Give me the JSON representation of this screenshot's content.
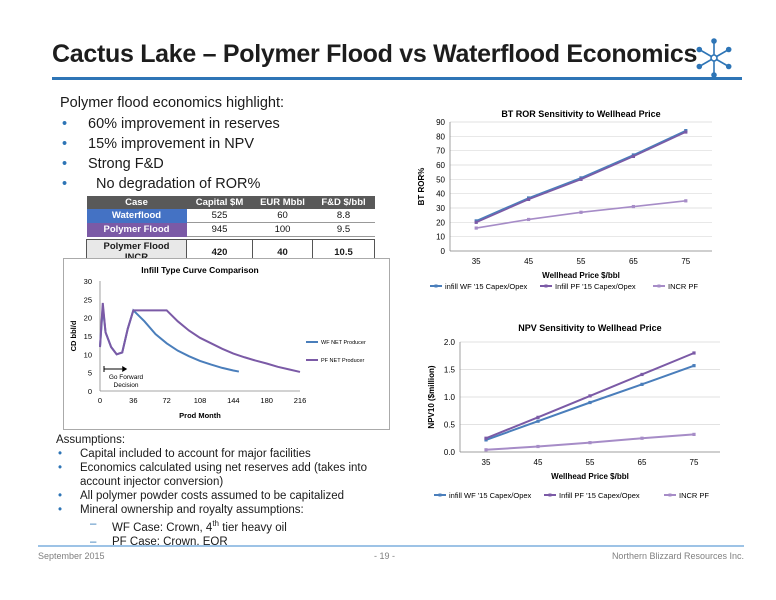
{
  "title": "Cactus Lake – Polymer Flood vs Waterflood Economics",
  "highlights": {
    "heading": "Polymer flood economics highlight:",
    "bullets": [
      "60% improvement in reserves",
      "15% improvement in NPV",
      "Strong F&D",
      "No degradation of ROR%"
    ]
  },
  "econ_table": {
    "headers": [
      "Case",
      "Capital $M",
      "EUR Mbbl",
      "F&D $/bbl"
    ],
    "rows": [
      [
        "Waterflood",
        "525",
        "60",
        "8.8"
      ],
      [
        "Polymer Flood",
        "945",
        "100",
        "9.5"
      ]
    ],
    "incr": [
      "Polymer Flood INCR",
      "420",
      "40",
      "10.5"
    ]
  },
  "colors": {
    "wf": "#4a7ebb",
    "pf": "#7b5aa6",
    "incr": "#a68cc7",
    "accent": "#2e75b6"
  },
  "chart_data": [
    {
      "type": "line",
      "title": "Infill Type Curve Comparison",
      "xlabel": "Prod Month",
      "ylabel": "CD bbl/d",
      "xlim": [
        0,
        216
      ],
      "ylim": [
        0,
        30
      ],
      "xticks": [
        0,
        36,
        72,
        108,
        144,
        180,
        216
      ],
      "yticks": [
        0,
        5,
        10,
        15,
        20,
        25,
        30
      ],
      "annotation": "Go Forward Decision",
      "legend_position": "right",
      "series": [
        {
          "name": "WF NET Producer",
          "x": [
            0,
            3,
            6,
            12,
            18,
            24,
            30,
            36,
            48,
            60,
            72,
            84,
            96,
            108,
            120,
            132,
            144,
            150
          ],
          "y": [
            12,
            23,
            16,
            12,
            10,
            10.5,
            17,
            22,
            19,
            15.5,
            13,
            11,
            9.5,
            8.2,
            7.2,
            6.3,
            5.6,
            5.3
          ]
        },
        {
          "name": "PF NET Producer",
          "x": [
            0,
            3,
            6,
            12,
            18,
            24,
            30,
            36,
            48,
            60,
            72,
            84,
            96,
            108,
            120,
            132,
            144,
            156,
            168,
            180,
            192,
            204,
            216
          ],
          "y": [
            12,
            24,
            16,
            12,
            10,
            10.5,
            17,
            22,
            22,
            22,
            22,
            19,
            16.5,
            14.5,
            13,
            11.5,
            10.2,
            9.2,
            8.3,
            7.5,
            6.6,
            5.9,
            5.2
          ]
        }
      ]
    },
    {
      "type": "line",
      "title": "BT ROR Sensitivity to Wellhead Price",
      "xlabel": "Wellhead Price $/bbl",
      "ylabel": "BT ROR%",
      "categories": [
        35,
        45,
        55,
        65,
        75
      ],
      "ylim": [
        0,
        90
      ],
      "yticks": [
        0,
        10,
        20,
        30,
        40,
        50,
        60,
        70,
        80,
        90
      ],
      "legend_position": "bottom",
      "series": [
        {
          "name": "infill WF '15 Capex/Opex",
          "values": [
            21,
            37,
            51,
            67,
            84
          ]
        },
        {
          "name": "Infill PF '15 Capex/Opex",
          "values": [
            20,
            36,
            50,
            66,
            83
          ]
        },
        {
          "name": "INCR PF",
          "values": [
            16,
            22,
            27,
            31,
            35
          ]
        }
      ]
    },
    {
      "type": "line",
      "title": "NPV Sensitivity to Wellhead Price",
      "xlabel": "Wellhead Price $/bbl",
      "ylabel": "NPV10 ($million)",
      "categories": [
        35,
        45,
        55,
        65,
        75
      ],
      "ylim": [
        0,
        2.0
      ],
      "yticks": [
        "0.0",
        "0.5",
        "1.0",
        "1.5",
        "2.0"
      ],
      "legend_position": "bottom",
      "series": [
        {
          "name": "infill WF '15 Capex/Opex",
          "values": [
            0.22,
            0.56,
            0.9,
            1.23,
            1.57
          ]
        },
        {
          "name": "Infill PF '15 Capex/Opex",
          "values": [
            0.25,
            0.63,
            1.02,
            1.41,
            1.8
          ]
        },
        {
          "name": "INCR PF",
          "values": [
            0.04,
            0.1,
            0.17,
            0.25,
            0.32
          ]
        }
      ]
    }
  ],
  "assumptions": {
    "heading": "Assumptions:",
    "bullets": [
      "Capital included to account for major facilities",
      "Economics calculated using net reserves add (takes into account injector conversion)",
      "All polymer powder costs assumed to be capitalized",
      "Mineral ownership and royalty assumptions:"
    ],
    "sub_wf_prefix": "WF Case: Crown, 4",
    "sub_wf_sup": "th",
    "sub_wf_suffix": " tier heavy oil",
    "sub_pf": "PF Case: Crown, EOR"
  },
  "footer": {
    "left": "September 2015",
    "center": "- 19 -",
    "right": "Northern Blizzard Resources Inc."
  }
}
